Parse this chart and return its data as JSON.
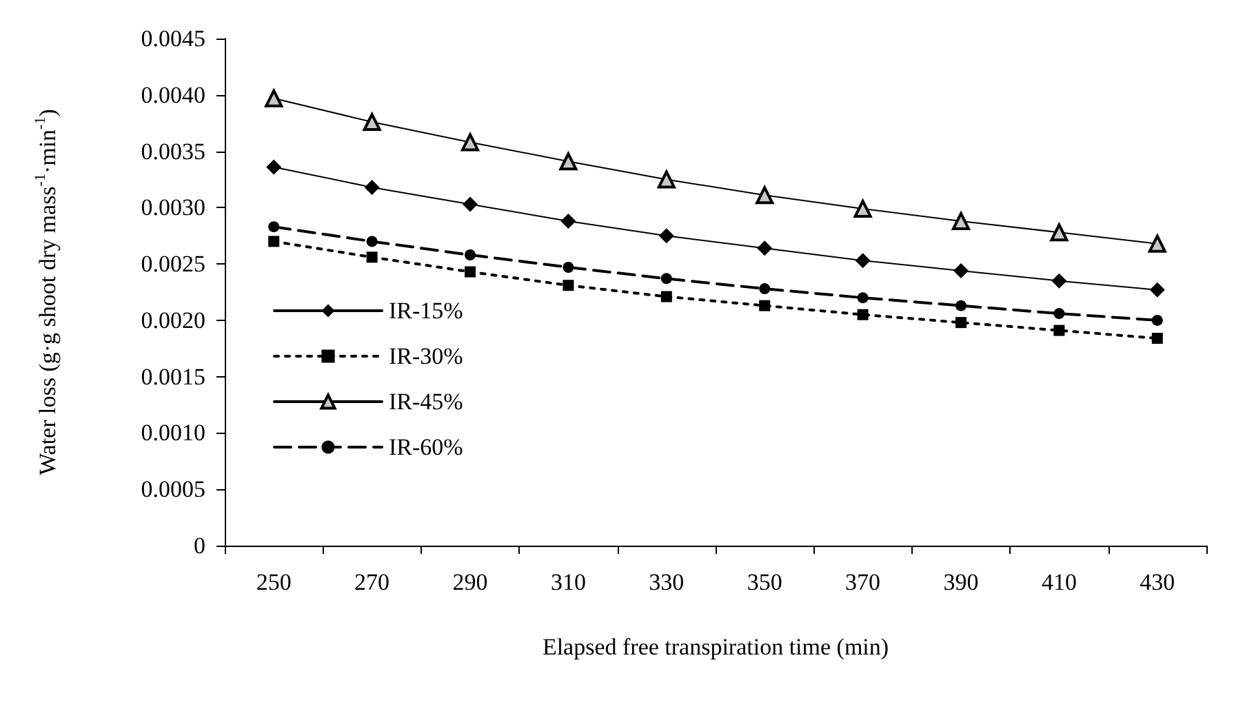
{
  "chart_data": {
    "type": "line",
    "xlabel": "Elapsed free transpiration time (min)",
    "ylabel": "Water loss (g·g shoot dry mass$^{-1}$·min$^{-1}$)",
    "categories": [
      "250",
      "270",
      "290",
      "310",
      "330",
      "350",
      "370",
      "390",
      "410",
      "430"
    ],
    "series": [
      {
        "name": "IR-15%",
        "color": "#000000",
        "marker": "diamond",
        "line_style": "solid",
        "values": [
          0.00336,
          0.00318,
          0.00303,
          0.00288,
          0.00275,
          0.00264,
          0.00253,
          0.00244,
          0.00235,
          0.00227
        ]
      },
      {
        "name": "IR-30%",
        "color": "#000000",
        "marker": "square",
        "line_style": "dotted",
        "values": [
          0.0027,
          0.00256,
          0.00243,
          0.00231,
          0.00221,
          0.00213,
          0.00205,
          0.00198,
          0.00191,
          0.00184
        ]
      },
      {
        "name": "IR-45%",
        "color": "#000000",
        "marker": "triangle",
        "line_style": "solid",
        "values": [
          0.00397,
          0.00376,
          0.00358,
          0.00341,
          0.00325,
          0.00311,
          0.00299,
          0.00288,
          0.00278,
          0.00268
        ]
      },
      {
        "name": "IR-60%",
        "color": "#000000",
        "marker": "circle",
        "line_style": "dashed",
        "values": [
          0.00283,
          0.0027,
          0.00258,
          0.00247,
          0.00237,
          0.00228,
          0.0022,
          0.00213,
          0.00206,
          0.002
        ]
      }
    ],
    "ylim": [
      0,
      0.0045
    ],
    "yticks": [
      0,
      {
        "value": 0.0005,
        "label": "0.0005"
      },
      {
        "value": 0.001,
        "label": "0.0010"
      },
      {
        "value": 0.0015,
        "label": "0.0015"
      },
      {
        "value": 0.002,
        "label": "0.0020"
      },
      {
        "value": 0.0025,
        "label": "0.0025"
      },
      {
        "value": 0.003,
        "label": "0.0030"
      },
      {
        "value": 0.0035,
        "label": "0.0035"
      },
      {
        "value": 0.004,
        "label": "0.0040"
      },
      {
        "value": 0.0045,
        "label": "0.0045"
      }
    ],
    "grid": false,
    "legend": "bottom left"
  }
}
